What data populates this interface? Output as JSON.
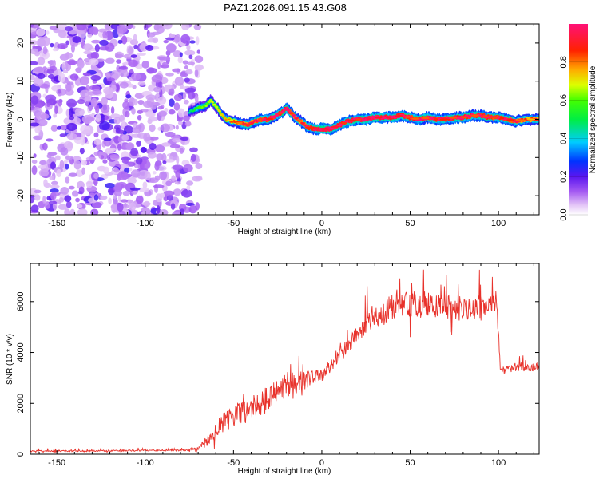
{
  "title": "PAZ1.2026.091.15.43.G08",
  "chart_data": [
    {
      "type": "heatmap",
      "name": "spectrogram",
      "xlabel": "Height of straight line (km)",
      "ylabel": "Frequency (Hz)",
      "xlim": [
        -165,
        123
      ],
      "ylim": [
        -25,
        25
      ],
      "xticks": [
        -150,
        -100,
        -50,
        0,
        50,
        100
      ],
      "yticks": [
        -20,
        -10,
        0,
        10,
        20
      ],
      "colorbar": {
        "label": "Normalized spectral amplitude",
        "range": [
          0.0,
          1.0
        ],
        "ticks": [
          0.0,
          0.2,
          0.4,
          0.6,
          0.8
        ],
        "tick_labels": [
          "0.0",
          "0.2",
          "0.4",
          "0.6",
          "0.8"
        ]
      },
      "noise_region_x": [
        -165,
        -75
      ],
      "ridge": {
        "x": [
          -75,
          -70,
          -66,
          -63,
          -60,
          -57,
          -54,
          -50,
          -46,
          -42,
          -38,
          -34,
          -30,
          -26,
          -22,
          -20,
          -18,
          -15,
          -12,
          -8,
          -4,
          0,
          5,
          10,
          15,
          20,
          25,
          30,
          35,
          40,
          45,
          50,
          55,
          60,
          65,
          70,
          75,
          80,
          85,
          90,
          95,
          100,
          105,
          110,
          115,
          123
        ],
        "freq": [
          2,
          3,
          3.5,
          5,
          3.5,
          1.5,
          0,
          -0.5,
          -1,
          -1.5,
          -0.5,
          0,
          0,
          1,
          2,
          3,
          2,
          0.5,
          -0.5,
          -2,
          -2.5,
          -2.5,
          -2.5,
          -1.5,
          -0.5,
          0,
          0,
          0.5,
          0.5,
          0.5,
          1,
          0.5,
          0,
          0.5,
          0,
          0,
          0.5,
          0.5,
          1,
          1,
          0.5,
          0.5,
          0,
          -0.5,
          0,
          0
        ],
        "amp": [
          0.3,
          0.4,
          0.45,
          0.5,
          0.5,
          0.55,
          0.6,
          0.65,
          0.7,
          0.75,
          0.75,
          0.8,
          0.8,
          0.8,
          0.85,
          0.85,
          0.8,
          0.75,
          0.7,
          0.8,
          0.85,
          0.9,
          0.9,
          0.85,
          0.85,
          0.85,
          0.9,
          0.9,
          0.85,
          0.85,
          0.85,
          0.8,
          0.85,
          0.8,
          0.8,
          0.8,
          0.85,
          0.85,
          0.8,
          0.8,
          0.8,
          0.8,
          0.8,
          0.75,
          0.7,
          0.7
        ]
      }
    },
    {
      "type": "line",
      "name": "snr",
      "xlabel": "Height of straight line (km)",
      "ylabel": "SNR (10 * v/v)",
      "xlim": [
        -165,
        123
      ],
      "ylim": [
        0,
        7500
      ],
      "xticks": [
        -150,
        -100,
        -50,
        0,
        50,
        100
      ],
      "yticks": [
        0,
        2000,
        4000,
        6000
      ],
      "color": "#e8322b",
      "envelope": {
        "x": [
          -165,
          -140,
          -110,
          -90,
          -75,
          -70,
          -65,
          -60,
          -55,
          -50,
          -40,
          -30,
          -20,
          -10,
          -5,
          0,
          5,
          10,
          15,
          20,
          25,
          30,
          40,
          50,
          60,
          70,
          80,
          90,
          95,
          99,
          100,
          101,
          105,
          110,
          115,
          123
        ],
        "mean": [
          120,
          130,
          140,
          150,
          160,
          200,
          500,
          900,
          1300,
          1500,
          1800,
          2200,
          2700,
          2900,
          3000,
          3100,
          3400,
          3900,
          4300,
          4700,
          5100,
          5400,
          5800,
          5900,
          5900,
          5800,
          5700,
          5800,
          5900,
          5900,
          5000,
          3300,
          3300,
          3400,
          3400,
          3450
        ],
        "spread": [
          60,
          60,
          60,
          60,
          60,
          200,
          400,
          600,
          800,
          900,
          1000,
          1000,
          1000,
          800,
          600,
          500,
          500,
          500,
          600,
          700,
          800,
          900,
          1000,
          1000,
          1000,
          1000,
          1000,
          900,
          800,
          700,
          700,
          300,
          300,
          300,
          300,
          300
        ]
      }
    }
  ]
}
